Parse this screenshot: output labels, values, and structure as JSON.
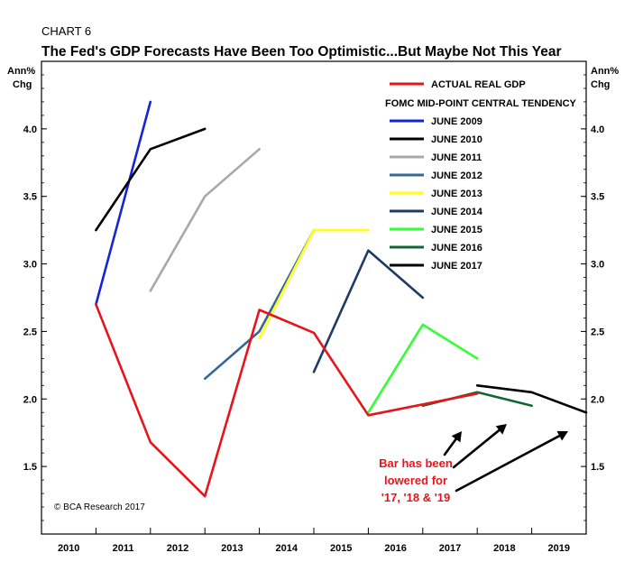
{
  "chart_label": "CHART 6",
  "chart_title": "The Fed's GDP Forecasts Have Been Too Optimistic...But Maybe Not This Year",
  "y_unit_left": [
    "Ann%",
    "Chg"
  ],
  "y_unit_right": [
    "Ann%",
    "Chg"
  ],
  "legend_subheading": "FOMC MID-POINT CENTRAL TENDENCY",
  "source": "© BCA Research 2017",
  "annotation": [
    "Bar has been",
    "lowered for",
    "'17, '18 & '19"
  ],
  "colors": {
    "actual": "#e8141b",
    "june2009": "#1424d6",
    "june2010": "#000000",
    "june2011": "#a8a8a8",
    "june2012": "#336699",
    "june2013": "#ffff1a",
    "june2014": "#1f3a66",
    "june2015": "#33ff33",
    "june2016": "#116633",
    "june2017": "#000000",
    "annotation": "#e8141b"
  },
  "chart_data": {
    "type": "line",
    "title": "The Fed's GDP Forecasts Have Been Too Optimistic...But Maybe Not This Year",
    "categories": [
      "2010",
      "2011",
      "2012",
      "2013",
      "2014",
      "2015",
      "2016",
      "2017",
      "2018",
      "2019"
    ],
    "yticks": [
      "1.5",
      "2.0",
      "2.5",
      "3.0",
      "3.5",
      "4.0"
    ],
    "ylim": [
      1.0,
      4.5
    ],
    "xlim": [
      2009.5,
      2019.5
    ],
    "series": [
      {
        "name": "ACTUAL REAL GDP",
        "key": "actual",
        "x": [
          2010.5,
          2011.5,
          2012.5,
          2013.5,
          2014.5,
          2015.5,
          2016.5,
          2017.5
        ],
        "values": [
          2.7,
          1.68,
          1.28,
          2.66,
          2.49,
          1.88,
          1.96,
          2.04
        ]
      },
      {
        "name": "JUNE 2009",
        "key": "june2009",
        "x": [
          2010.5,
          2011.5
        ],
        "values": [
          2.7,
          4.2
        ]
      },
      {
        "name": "JUNE 2010",
        "key": "june2010",
        "x": [
          2010.5,
          2011.5,
          2012.5
        ],
        "values": [
          3.25,
          3.85,
          4.0
        ]
      },
      {
        "name": "JUNE 2011",
        "key": "june2011",
        "x": [
          2011.5,
          2012.5,
          2013.5
        ],
        "values": [
          2.8,
          3.5,
          3.85
        ]
      },
      {
        "name": "JUNE 2012",
        "key": "june2012",
        "x": [
          2012.5,
          2013.5,
          2014.5
        ],
        "values": [
          2.15,
          2.5,
          3.25
        ]
      },
      {
        "name": "JUNE 2013",
        "key": "june2013",
        "x": [
          2013.5,
          2014.5,
          2015.5
        ],
        "values": [
          2.45,
          3.25,
          3.25
        ]
      },
      {
        "name": "JUNE 2014",
        "key": "june2014",
        "x": [
          2014.5,
          2015.5,
          2016.5
        ],
        "values": [
          2.2,
          3.1,
          2.75
        ]
      },
      {
        "name": "JUNE 2015",
        "key": "june2015",
        "x": [
          2015.5,
          2016.5,
          2017.5
        ],
        "values": [
          1.9,
          2.55,
          2.3
        ]
      },
      {
        "name": "JUNE 2016",
        "key": "june2016",
        "x": [
          2016.5,
          2017.5,
          2018.5
        ],
        "values": [
          1.95,
          2.05,
          1.95
        ]
      },
      {
        "name": "JUNE 2017",
        "key": "june2017",
        "x": [
          2017.5,
          2018.5,
          2019.5
        ],
        "values": [
          2.1,
          2.05,
          1.9
        ]
      }
    ]
  }
}
